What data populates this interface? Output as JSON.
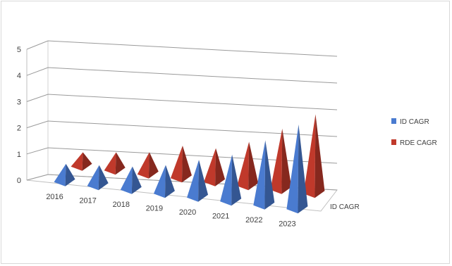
{
  "chart_data": {
    "type": "bar",
    "subtype": "3d-pyramid",
    "title": "",
    "xlabel": "",
    "ylabel": "",
    "ylim": [
      0,
      5
    ],
    "y_ticks": [
      "0",
      "1",
      "2",
      "3",
      "4",
      "5"
    ],
    "categories": [
      "2016",
      "2017",
      "2018",
      "2019",
      "2020",
      "2021",
      "2022",
      "2023"
    ],
    "series": [
      {
        "name": "ID CAGR",
        "color": "#4a7bd0",
        "values": [
          0.7,
          0.8,
          0.9,
          1.1,
          1.45,
          1.8,
          2.5,
          3.25
        ]
      },
      {
        "name": "RDE CAGR",
        "color": "#c0392b",
        "values": [
          0.55,
          0.7,
          0.85,
          1.25,
          1.3,
          1.7,
          2.35,
          3.05
        ]
      }
    ],
    "depth_axis_label": "ID CAGR",
    "grid": true,
    "legend_position": "right"
  }
}
